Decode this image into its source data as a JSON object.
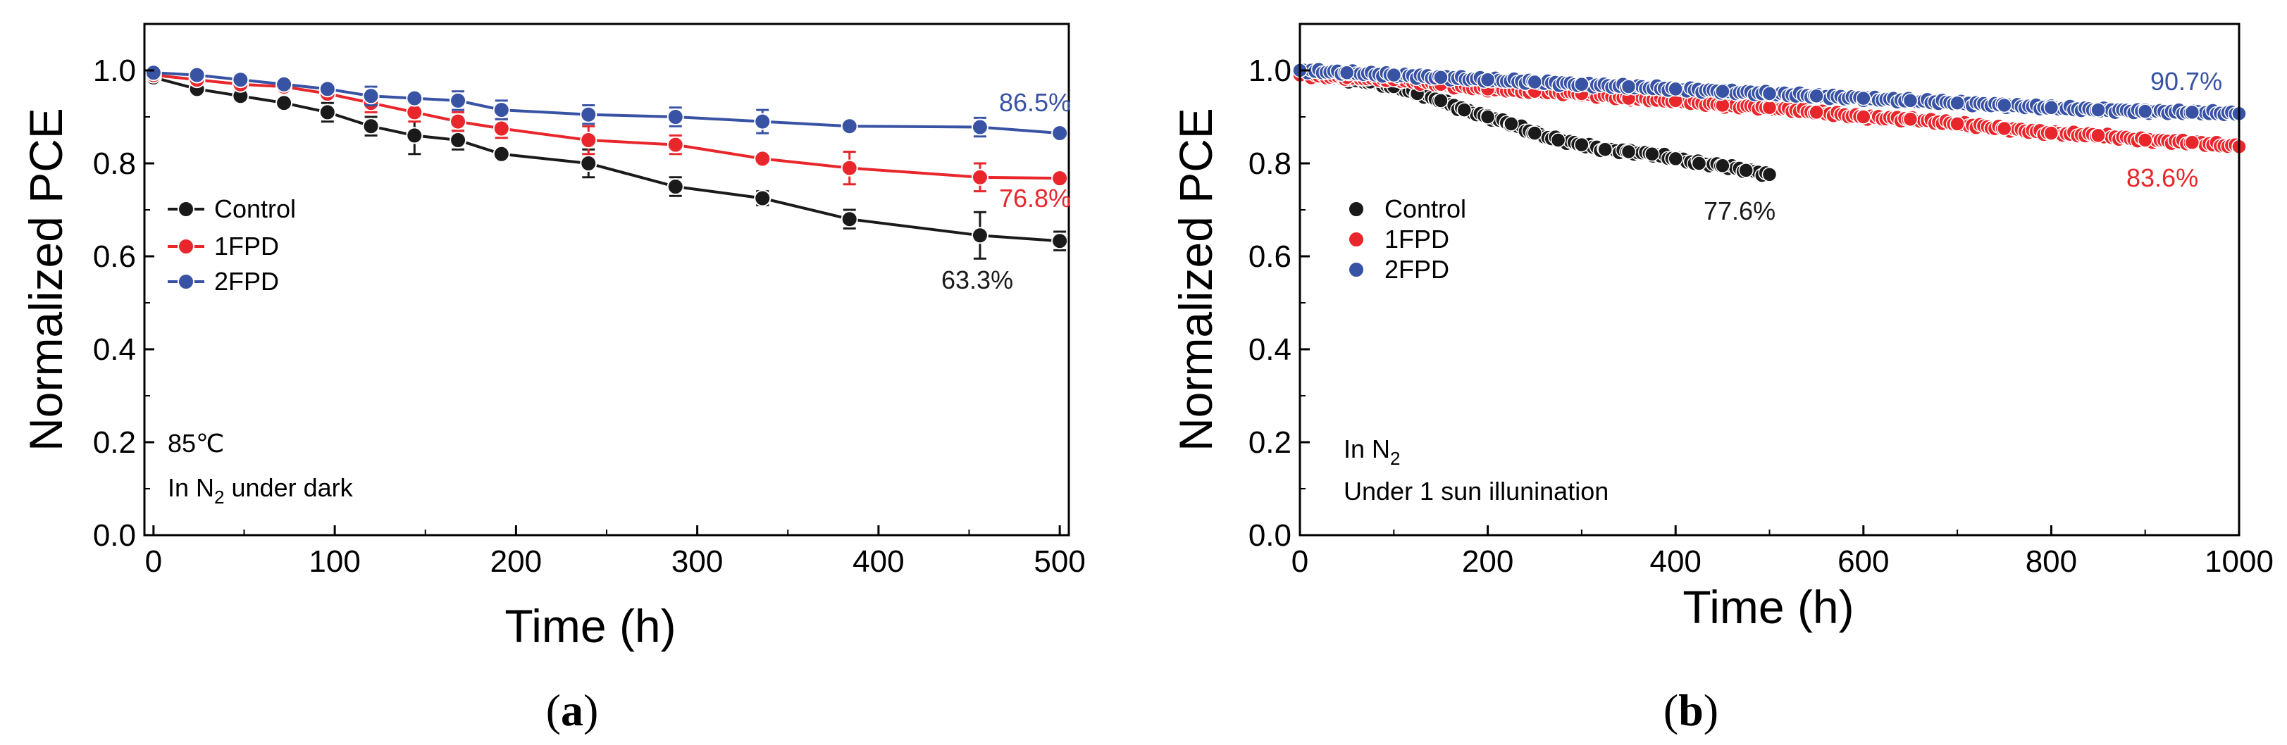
{
  "chart_data": [
    {
      "type": "line",
      "panel": "a",
      "caption": {
        "open": "(",
        "letter": "a",
        "close": ")"
      },
      "xlabel": "Time (h)",
      "ylabel": "Normalized PCE",
      "xlim": [
        -5,
        505
      ],
      "ylim": [
        0.0,
        1.1
      ],
      "xticks": [
        0,
        100,
        200,
        300,
        400,
        500
      ],
      "yticks": [
        0.0,
        0.2,
        0.4,
        0.6,
        0.8,
        1.0
      ],
      "xtick_labels": [
        "0",
        "100",
        "200",
        "300",
        "400",
        "500"
      ],
      "ytick_labels": [
        "0.0",
        "0.2",
        "0.4",
        "0.6",
        "0.8",
        "1.0"
      ],
      "legend_position": "left",
      "annotations": {
        "line1": "85℃",
        "line2_pre": "In N",
        "line2_sub": "2",
        "line2_post": " under dark"
      },
      "x": [
        0,
        24,
        48,
        72,
        96,
        120,
        144,
        168,
        192,
        240,
        288,
        336,
        384,
        456,
        500
      ],
      "series": [
        {
          "name": "Control",
          "color": "#1a1a1a",
          "final_label": "63.3%",
          "values": [
            0.985,
            0.96,
            0.945,
            0.93,
            0.91,
            0.88,
            0.86,
            0.85,
            0.82,
            0.8,
            0.75,
            0.725,
            0.68,
            0.645,
            0.633
          ],
          "errors": [
            0.01,
            0.01,
            0.01,
            0.01,
            0.02,
            0.02,
            0.04,
            0.02,
            0.01,
            0.03,
            0.02,
            0.015,
            0.02,
            0.05,
            0.02
          ]
        },
        {
          "name": "1FPD",
          "color": "#e8262b",
          "final_label": "76.8%",
          "values": [
            0.99,
            0.98,
            0.97,
            0.965,
            0.95,
            0.93,
            0.91,
            0.89,
            0.875,
            0.85,
            0.84,
            0.81,
            0.79,
            0.77,
            0.768
          ],
          "errors": [
            0.01,
            0.01,
            0.01,
            0.01,
            0.01,
            0.02,
            0.02,
            0.02,
            0.02,
            0.03,
            0.02,
            0.01,
            0.035,
            0.03,
            0.01
          ]
        },
        {
          "name": "2FPD",
          "color": "#3852a4",
          "final_label": "86.5%",
          "values": [
            0.995,
            0.99,
            0.98,
            0.97,
            0.96,
            0.945,
            0.94,
            0.935,
            0.915,
            0.905,
            0.9,
            0.89,
            0.88,
            0.878,
            0.865
          ],
          "errors": [
            0.01,
            0.01,
            0.01,
            0.01,
            0.01,
            0.02,
            0.01,
            0.02,
            0.02,
            0.02,
            0.02,
            0.025,
            0.01,
            0.02,
            0.01
          ]
        }
      ]
    },
    {
      "type": "scatter",
      "panel": "b",
      "caption": {
        "open": "(",
        "letter": "b",
        "close": ")"
      },
      "xlabel": "Time (h)",
      "ylabel": "Normalized PCE",
      "xlim": [
        0,
        1000
      ],
      "ylim": [
        0.0,
        1.1
      ],
      "xticks": [
        0,
        200,
        400,
        600,
        800,
        1000
      ],
      "yticks": [
        0.0,
        0.2,
        0.4,
        0.6,
        0.8,
        1.0
      ],
      "xtick_labels": [
        "0",
        "200",
        "400",
        "600",
        "800",
        "1000"
      ],
      "ytick_labels": [
        "0.0",
        "0.2",
        "0.4",
        "0.6",
        "0.8",
        "1.0"
      ],
      "legend_position": "left",
      "annotations": {
        "line1_pre": "In N",
        "line1_sub": "2",
        "line2": "Under 1 sun illunination"
      },
      "series": [
        {
          "name": "Control",
          "color": "#1a1a1a",
          "final_label": "77.6%",
          "x": [
            0,
            25,
            50,
            75,
            100,
            125,
            150,
            175,
            200,
            225,
            250,
            275,
            300,
            325,
            350,
            375,
            400,
            425,
            450,
            475,
            500
          ],
          "values": [
            1.0,
            0.99,
            0.98,
            0.975,
            0.965,
            0.95,
            0.935,
            0.915,
            0.9,
            0.885,
            0.865,
            0.85,
            0.84,
            0.83,
            0.825,
            0.82,
            0.81,
            0.8,
            0.795,
            0.785,
            0.776
          ]
        },
        {
          "name": "1FPD",
          "color": "#e8262b",
          "final_label": "83.6%",
          "x": [
            0,
            50,
            100,
            150,
            200,
            250,
            300,
            350,
            400,
            450,
            500,
            550,
            600,
            650,
            700,
            750,
            800,
            850,
            900,
            950,
            1000
          ],
          "values": [
            0.99,
            0.985,
            0.98,
            0.97,
            0.96,
            0.955,
            0.95,
            0.94,
            0.935,
            0.925,
            0.92,
            0.91,
            0.9,
            0.895,
            0.885,
            0.875,
            0.865,
            0.86,
            0.85,
            0.845,
            0.836
          ]
        },
        {
          "name": "2FPD",
          "color": "#3852a4",
          "final_label": "90.7%",
          "x": [
            0,
            50,
            100,
            150,
            200,
            250,
            300,
            350,
            400,
            450,
            500,
            550,
            600,
            650,
            700,
            750,
            800,
            850,
            900,
            950,
            1000
          ],
          "values": [
            1.0,
            0.995,
            0.99,
            0.985,
            0.98,
            0.975,
            0.97,
            0.965,
            0.96,
            0.955,
            0.95,
            0.945,
            0.94,
            0.935,
            0.93,
            0.925,
            0.92,
            0.915,
            0.912,
            0.91,
            0.907
          ]
        }
      ]
    }
  ]
}
